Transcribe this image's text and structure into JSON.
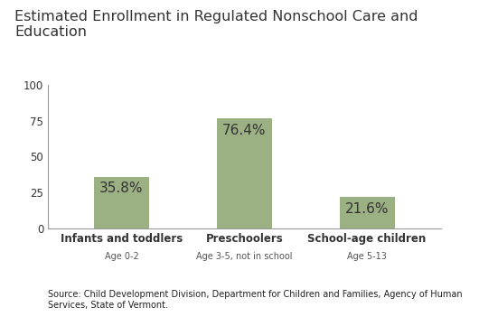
{
  "chart_data": {
    "type": "bar",
    "title": "Estimated Enrollment in Regulated Nonschool Care and Education",
    "categories": [
      "Infants and toddlers",
      "Preschoolers",
      "School-age children"
    ],
    "category_subtitles": [
      "Age 0-2",
      "Age 3-5, not in school",
      "Age 5-13"
    ],
    "values": [
      35.8,
      76.4,
      21.6
    ],
    "value_labels": [
      "35.8%",
      "76.4%",
      "21.6%"
    ],
    "data_labels": true,
    "color": "#9bb083",
    "ylim": [
      0,
      100
    ],
    "yticks": [
      0,
      25,
      50,
      75,
      100
    ],
    "grid": false,
    "source": "Source: Child Development Division, Department for Children and Families, Agency of Human Services, State of Vermont."
  }
}
